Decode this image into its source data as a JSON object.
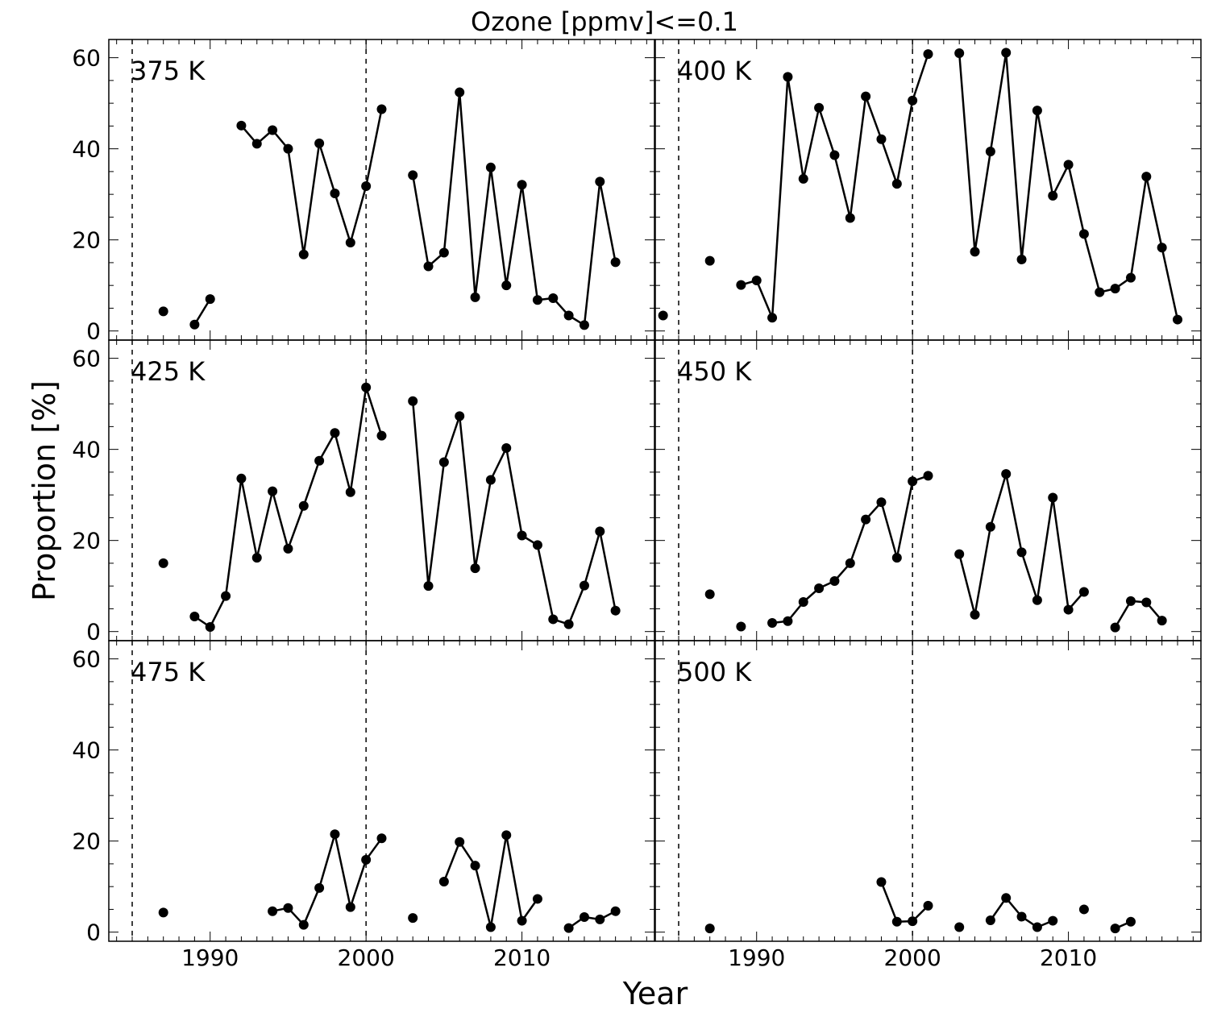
{
  "figure": {
    "title": "Ozone [ppmv]<=0.1",
    "xlabel": "Year",
    "ylabel": "Proportion [%]"
  },
  "chart_data": {
    "type": "line",
    "title": "Ozone [ppmv]<=0.1",
    "xlabel": "Year",
    "ylabel": "Proportion [%]",
    "xlim": [
      1983.5,
      2018.5
    ],
    "ylim": [
      -2,
      64
    ],
    "xticks": [
      1990,
      2000,
      2010
    ],
    "yticks": [
      0,
      20,
      40,
      60
    ],
    "vlines": [
      1985,
      2000
    ],
    "grid": false,
    "layout": "3 rows x 2 columns",
    "panels": [
      {
        "label": "375 K",
        "points": [
          [
            1987,
            4.3
          ],
          [
            1989,
            1.4
          ],
          [
            1990,
            7.0
          ],
          [
            1992,
            45.1
          ],
          [
            1993,
            41.1
          ],
          [
            1994,
            44.1
          ],
          [
            1995,
            40.0
          ],
          [
            1996,
            16.8
          ],
          [
            1997,
            41.2
          ],
          [
            1998,
            30.2
          ],
          [
            1999,
            19.4
          ],
          [
            2000,
            31.8
          ],
          [
            2001,
            48.7
          ],
          [
            2003,
            34.2
          ],
          [
            2004,
            14.2
          ],
          [
            2005,
            17.2
          ],
          [
            2006,
            52.4
          ],
          [
            2007,
            7.4
          ],
          [
            2008,
            35.9
          ],
          [
            2009,
            10.0
          ],
          [
            2010,
            32.1
          ],
          [
            2011,
            6.8
          ],
          [
            2012,
            7.2
          ],
          [
            2013,
            3.4
          ],
          [
            2014,
            1.3
          ],
          [
            2015,
            32.8
          ],
          [
            2016,
            15.1
          ]
        ],
        "segments": [
          [
            1989,
            1990
          ],
          [
            1992,
            2001
          ],
          [
            2003,
            2016
          ]
        ]
      },
      {
        "label": "400 K",
        "points": [
          [
            1984,
            3.4
          ],
          [
            1987,
            15.4
          ],
          [
            1989,
            10.1
          ],
          [
            1990,
            11.1
          ],
          [
            1991,
            2.9
          ],
          [
            1992,
            55.8
          ],
          [
            1993,
            33.4
          ],
          [
            1994,
            49.0
          ],
          [
            1995,
            38.6
          ],
          [
            1996,
            24.8
          ],
          [
            1997,
            51.5
          ],
          [
            1998,
            42.1
          ],
          [
            1999,
            32.3
          ],
          [
            2000,
            50.6
          ],
          [
            2001,
            60.8
          ],
          [
            2003,
            61.0
          ],
          [
            2004,
            17.4
          ],
          [
            2005,
            39.4
          ],
          [
            2006,
            61.1
          ],
          [
            2007,
            15.7
          ],
          [
            2008,
            48.4
          ],
          [
            2009,
            29.7
          ],
          [
            2010,
            36.5
          ],
          [
            2011,
            21.3
          ],
          [
            2012,
            8.5
          ],
          [
            2013,
            9.3
          ],
          [
            2014,
            11.7
          ],
          [
            2015,
            33.9
          ],
          [
            2016,
            18.3
          ],
          [
            2017,
            2.5
          ]
        ],
        "segments": [
          [
            1989,
            2001
          ],
          [
            2003,
            2017
          ]
        ]
      },
      {
        "label": "425 K",
        "points": [
          [
            1987,
            15.0
          ],
          [
            1989,
            3.3
          ],
          [
            1990,
            1.0
          ],
          [
            1991,
            7.8
          ],
          [
            1992,
            33.6
          ],
          [
            1993,
            16.2
          ],
          [
            1994,
            30.8
          ],
          [
            1995,
            18.2
          ],
          [
            1996,
            27.6
          ],
          [
            1997,
            37.5
          ],
          [
            1998,
            43.6
          ],
          [
            1999,
            30.6
          ],
          [
            2000,
            53.6
          ],
          [
            2001,
            43.0
          ],
          [
            2003,
            50.6
          ],
          [
            2004,
            10.0
          ],
          [
            2005,
            37.2
          ],
          [
            2006,
            47.3
          ],
          [
            2007,
            13.9
          ],
          [
            2008,
            33.3
          ],
          [
            2009,
            40.3
          ],
          [
            2010,
            21.1
          ],
          [
            2011,
            19.0
          ],
          [
            2012,
            2.7
          ],
          [
            2013,
            1.6
          ],
          [
            2014,
            10.1
          ],
          [
            2015,
            22.0
          ],
          [
            2016,
            4.6
          ]
        ],
        "segments": [
          [
            1989,
            2001
          ],
          [
            2003,
            2016
          ]
        ]
      },
      {
        "label": "450 K",
        "points": [
          [
            1987,
            8.2
          ],
          [
            1989,
            1.1
          ],
          [
            1991,
            1.9
          ],
          [
            1992,
            2.3
          ],
          [
            1993,
            6.5
          ],
          [
            1994,
            9.5
          ],
          [
            1995,
            11.1
          ],
          [
            1996,
            15.0
          ],
          [
            1997,
            24.6
          ],
          [
            1998,
            28.4
          ],
          [
            1999,
            16.2
          ],
          [
            2000,
            33.0
          ],
          [
            2001,
            34.2
          ],
          [
            2003,
            17.0
          ],
          [
            2004,
            3.7
          ],
          [
            2005,
            23.0
          ],
          [
            2006,
            34.6
          ],
          [
            2007,
            17.4
          ],
          [
            2008,
            6.9
          ],
          [
            2009,
            29.4
          ],
          [
            2010,
            4.8
          ],
          [
            2011,
            8.7
          ],
          [
            2013,
            0.9
          ],
          [
            2014,
            6.7
          ],
          [
            2015,
            6.4
          ],
          [
            2016,
            2.4
          ]
        ],
        "segments": [
          [
            1991,
            2001
          ],
          [
            2003,
            2011
          ],
          [
            2013,
            2016
          ]
        ]
      },
      {
        "label": "475 K",
        "points": [
          [
            1987,
            4.3
          ],
          [
            1994,
            4.6
          ],
          [
            1995,
            5.3
          ],
          [
            1996,
            1.6
          ],
          [
            1997,
            9.7
          ],
          [
            1998,
            21.5
          ],
          [
            1999,
            5.5
          ],
          [
            2000,
            15.9
          ],
          [
            2001,
            20.6
          ],
          [
            2003,
            3.1
          ],
          [
            2005,
            11.1
          ],
          [
            2006,
            19.8
          ],
          [
            2007,
            14.6
          ],
          [
            2008,
            1.1
          ],
          [
            2009,
            21.3
          ],
          [
            2010,
            2.5
          ],
          [
            2011,
            7.3
          ],
          [
            2013,
            0.9
          ],
          [
            2014,
            3.3
          ],
          [
            2015,
            2.8
          ],
          [
            2016,
            4.6
          ]
        ],
        "segments": [
          [
            1994,
            2001
          ],
          [
            2005,
            2011
          ],
          [
            2013,
            2016
          ]
        ]
      },
      {
        "label": "500 K",
        "points": [
          [
            1987,
            0.8
          ],
          [
            1998,
            11.0
          ],
          [
            1999,
            2.3
          ],
          [
            2000,
            2.4
          ],
          [
            2001,
            5.8
          ],
          [
            2003,
            1.1
          ],
          [
            2005,
            2.6
          ],
          [
            2006,
            7.5
          ],
          [
            2007,
            3.4
          ],
          [
            2008,
            1.1
          ],
          [
            2009,
            2.5
          ],
          [
            2011,
            5.0
          ],
          [
            2013,
            0.8
          ],
          [
            2014,
            2.3
          ]
        ],
        "segments": [
          [
            1998,
            2001
          ],
          [
            2005,
            2009
          ],
          [
            2013,
            2014
          ]
        ]
      }
    ]
  }
}
